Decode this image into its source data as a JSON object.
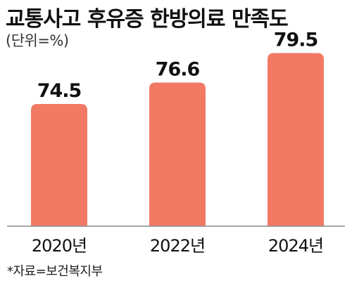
{
  "title": "교통사고 후유증 한방의료 만족도",
  "subtitle": "(단위=%)",
  "source": "*자료=보건복지부",
  "colors": {
    "bar": "#f27a64",
    "axis": "#8a8a8a",
    "text": "#111111"
  },
  "chart_data": {
    "type": "bar",
    "categories": [
      "2020년",
      "2022년",
      "2024년"
    ],
    "values": [
      74.5,
      76.6,
      79.5
    ],
    "value_labels": [
      "74.5",
      "76.6",
      "79.5"
    ],
    "title": "교통사고 후유증 한방의료 만족도",
    "xlabel": "",
    "ylabel": "",
    "unit": "%",
    "grid": false,
    "legend": "none"
  }
}
